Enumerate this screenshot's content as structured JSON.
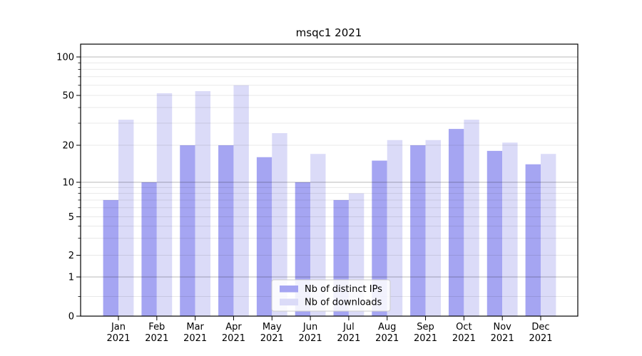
{
  "chart_data": {
    "type": "bar",
    "title": "msqc1 2021",
    "categories": [
      "Jan",
      "Feb",
      "Mar",
      "Apr",
      "May",
      "Jun",
      "Jul",
      "Aug",
      "Sep",
      "Oct",
      "Nov",
      "Dec"
    ],
    "year_line": "2021",
    "series": [
      {
        "name": "Nb of distinct IPs",
        "color": "#a5a5f2",
        "values": [
          7,
          10,
          20,
          20,
          16,
          10,
          7,
          15,
          20,
          27,
          18,
          14
        ]
      },
      {
        "name": "Nb of downloads",
        "color": "#dbdbf8",
        "values": [
          32,
          52,
          54,
          60,
          25,
          17,
          8,
          22,
          22,
          32,
          21,
          17
        ]
      }
    ],
    "xlabel": "",
    "ylabel": "",
    "yscale": "symlog",
    "ylim": [
      0,
      126
    ],
    "y_ticks_labeled": [
      0,
      1,
      2,
      5,
      10,
      20,
      50,
      100
    ],
    "y_gridlines_major": [
      1,
      10,
      100
    ],
    "y_gridlines_light": [
      0.5,
      2,
      3,
      4,
      5,
      6,
      7,
      8,
      9,
      20,
      30,
      40,
      50,
      60,
      70,
      80,
      90
    ],
    "y_ticks_minor": [
      0.5,
      3,
      4,
      6,
      7,
      8,
      9,
      30,
      40,
      60,
      70,
      80,
      90
    ],
    "grid": true,
    "legend": {
      "position": "lower center"
    },
    "colors": {
      "spine": "#000000",
      "grid_major": "rgba(0,0,0,0.28)",
      "grid_light": "rgba(0,0,0,0.09)",
      "legend_border": "#cccccc",
      "legend_bg": "rgba(255,255,255,0.85)"
    }
  }
}
